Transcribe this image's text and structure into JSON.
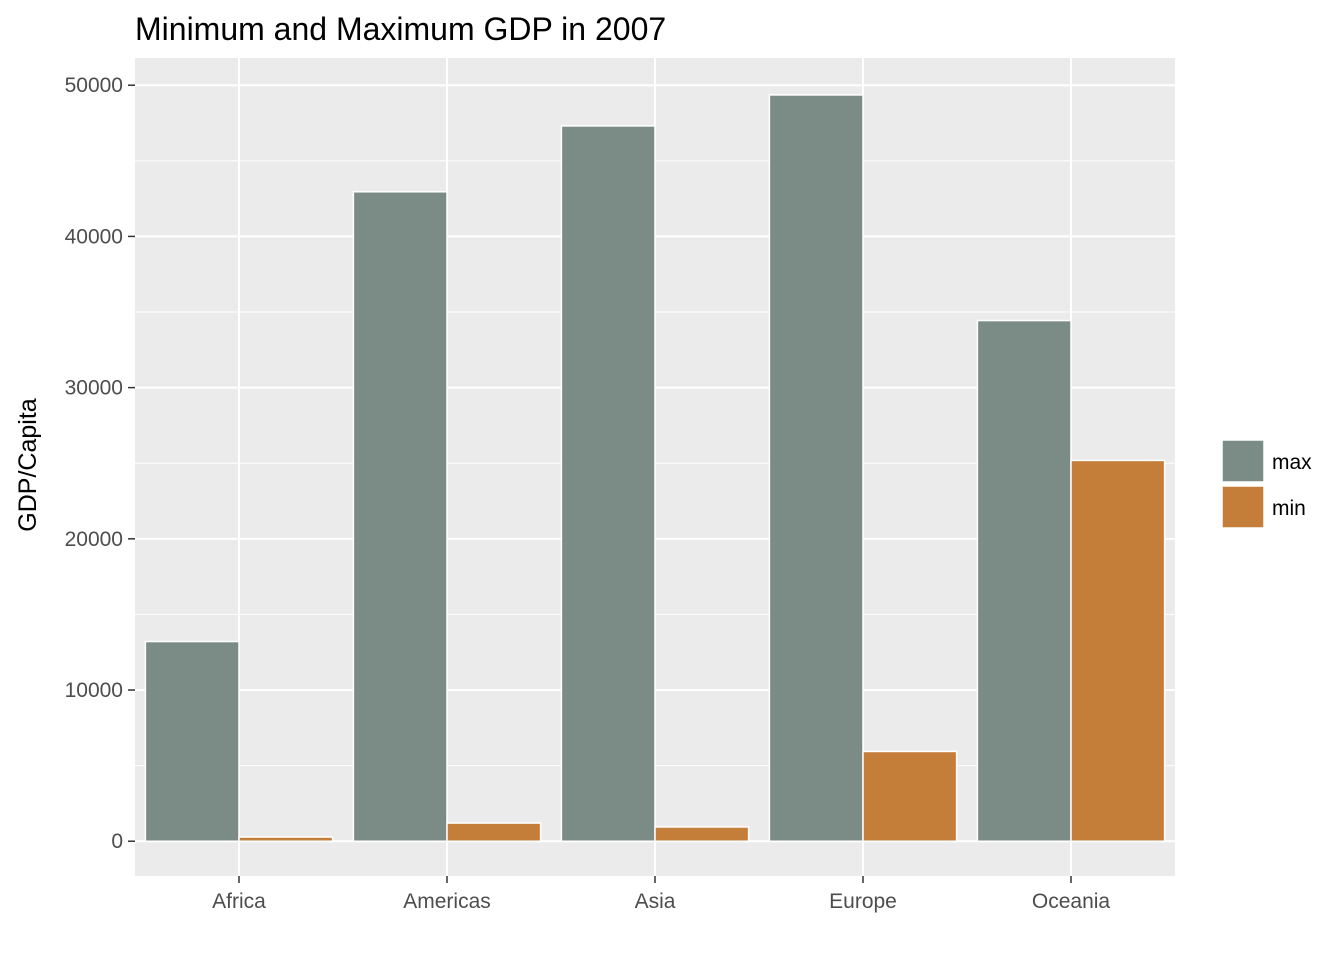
{
  "chart_data": {
    "type": "bar",
    "title": "Minimum and Maximum GDP in 2007",
    "xlabel": "",
    "ylabel": "GDP/Capita",
    "categories": [
      "Africa",
      "Americas",
      "Asia",
      "Europe",
      "Oceania"
    ],
    "series": [
      {
        "name": "max",
        "color": "#7a8c85",
        "values": [
          13206,
          42952,
          47307,
          49357,
          34435
        ]
      },
      {
        "name": "min",
        "color": "#c47e3a",
        "values": [
          278,
          1202,
          944,
          5937,
          25185
        ]
      }
    ],
    "ylim": [
      -2300,
      51800
    ],
    "yticks": [
      0,
      10000,
      20000,
      30000,
      40000,
      50000
    ],
    "ytick_labels": [
      "0",
      "10000",
      "20000",
      "30000",
      "40000",
      "50000"
    ],
    "grid": true,
    "legend_position": "right",
    "panel_color": "#ebebeb"
  }
}
